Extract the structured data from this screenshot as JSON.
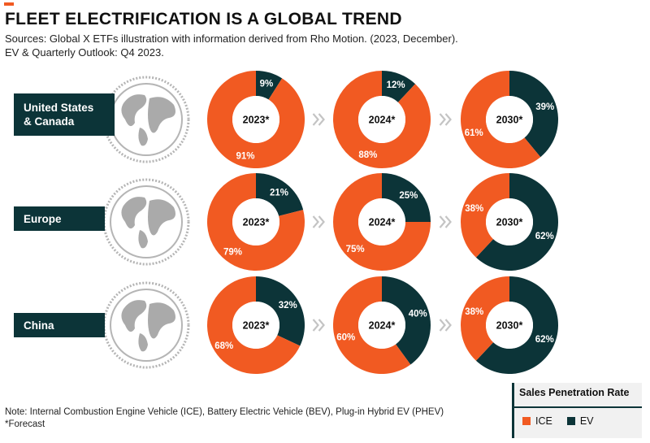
{
  "header": {
    "title": "FLEET ELECTRIFICATION IS A GLOBAL TREND",
    "subtitle_line1": "Sources: Global X ETFs illustration with information derived from Rho Motion. (2023, December).",
    "subtitle_line2": "EV & Quarterly Outlook: Q4 2023."
  },
  "colors": {
    "ice": "#f15a22",
    "ev": "#0c3438",
    "globe": "#b5b5b5",
    "arrow": "#c4c4c4"
  },
  "chart_data": {
    "type": "pie",
    "subtype": "donut",
    "title": "Sales Penetration Rate",
    "categories": [
      "ICE",
      "EV"
    ],
    "regions": [
      {
        "name": "United States & Canada",
        "label_line1": "United States",
        "label_line2": "& Canada",
        "years": [
          {
            "year": "2023*",
            "ice": 91,
            "ev": 9
          },
          {
            "year": "2024*",
            "ice": 88,
            "ev": 12
          },
          {
            "year": "2030*",
            "ice": 61,
            "ev": 39
          }
        ]
      },
      {
        "name": "Europe",
        "label_line1": "Europe",
        "label_line2": "",
        "years": [
          {
            "year": "2023*",
            "ice": 79,
            "ev": 21
          },
          {
            "year": "2024*",
            "ice": 75,
            "ev": 25
          },
          {
            "year": "2030*",
            "ice": 38,
            "ev": 62
          }
        ]
      },
      {
        "name": "China",
        "label_line1": "China",
        "label_line2": "",
        "years": [
          {
            "year": "2023*",
            "ice": 68,
            "ev": 32
          },
          {
            "year": "2024*",
            "ice": 60,
            "ev": 40
          },
          {
            "year": "2030*",
            "ice": 38,
            "ev": 62
          }
        ]
      }
    ]
  },
  "legend": {
    "title": "Sales Penetration Rate",
    "ice_label": "ICE",
    "ev_label": "EV"
  },
  "footnote": {
    "line1": "Note: Internal Combustion Engine Vehicle (ICE), Battery Electric Vehicle (BEV), Plug-in Hybrid EV (PHEV)",
    "line2": "*Forecast"
  }
}
